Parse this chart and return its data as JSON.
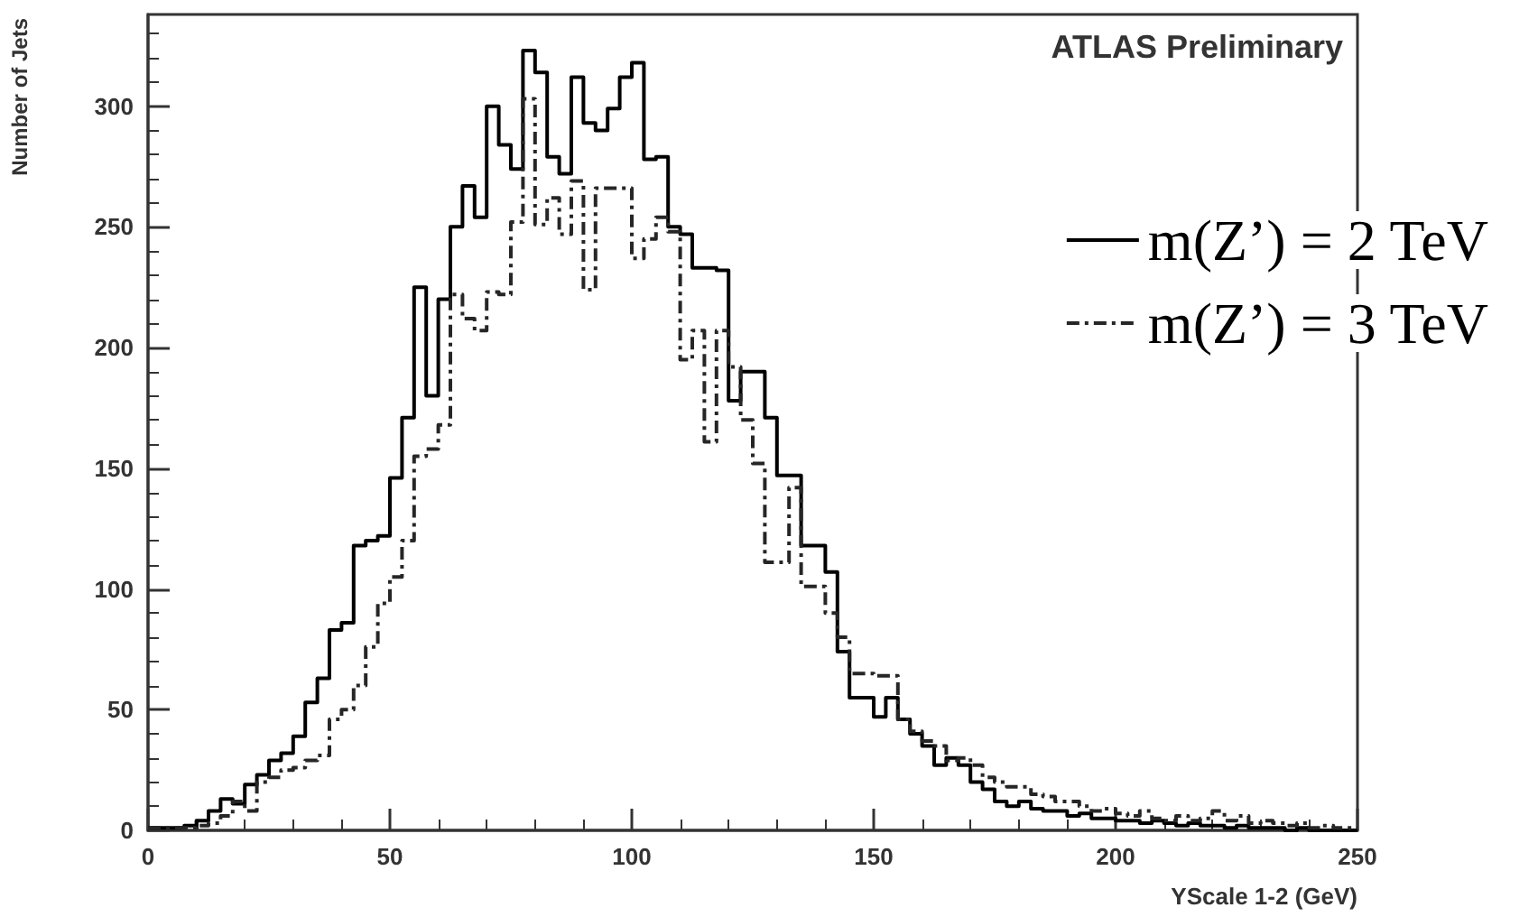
{
  "chart_data": {
    "type": "histogram",
    "xlabel": "YScale 1-2 (GeV)",
    "ylabel": "Number of Jets",
    "annotations": [
      "ATLAS Preliminary"
    ],
    "bins": [
      0,
      2.5,
      5,
      7.5,
      10,
      12.5,
      15,
      17.5,
      20,
      22.5,
      25,
      27.5,
      30,
      32.5,
      35,
      37.5,
      40,
      42.5,
      45,
      47.5,
      50,
      52.5,
      55,
      57.5,
      60,
      62.5,
      65,
      67.5,
      70,
      72.5,
      75,
      77.5,
      80,
      82.5,
      85,
      87.5,
      90,
      92.5,
      95,
      97.5,
      100,
      102.5,
      105,
      107.5,
      110,
      112.5,
      115,
      117.5,
      120,
      122.5,
      125,
      127.5,
      130,
      132.5,
      135,
      137.5,
      140,
      142.5,
      145,
      147.5,
      150,
      152.5,
      155,
      157.5,
      160,
      162.5,
      165,
      167.5,
      170,
      172.5,
      175,
      177.5,
      180,
      182.5,
      185,
      187.5,
      190,
      192.5,
      195,
      197.5,
      200,
      202.5,
      205,
      207.5,
      210,
      212.5,
      215,
      217.5,
      220,
      222.5,
      225,
      227.5,
      230,
      232.5,
      235,
      237.5,
      240,
      242.5,
      245,
      247.5,
      250
    ],
    "series": [
      {
        "name": "m(Z’) = 2 TeV",
        "color": "#000000",
        "line_style": "solid",
        "values": [
          1,
          1,
          1,
          2,
          4,
          8,
          13,
          11,
          19,
          23,
          29,
          32,
          39,
          53,
          63,
          83,
          86,
          118,
          120,
          122,
          146,
          171,
          225,
          180,
          220,
          250,
          267,
          254,
          300,
          284,
          274,
          323,
          314,
          279,
          272,
          312,
          293,
          290,
          299,
          312,
          318,
          278,
          279,
          250,
          247,
          233,
          233,
          232,
          178,
          190,
          190,
          171,
          147,
          147,
          118,
          118,
          107,
          74,
          55,
          55,
          47,
          55,
          46,
          40,
          35,
          27,
          30,
          27,
          20,
          17,
          12,
          10,
          12,
          9,
          8,
          8,
          6,
          7,
          5,
          5,
          4,
          4,
          3,
          4,
          3,
          2,
          3,
          2,
          2,
          1,
          2,
          1,
          1,
          1,
          0,
          1,
          0,
          0,
          0,
          0
        ]
      },
      {
        "name": "m(Z’) = 3 TeV",
        "color": "#262626",
        "line_style": "dashed",
        "values": [
          1,
          1,
          1,
          1,
          2,
          3,
          6,
          12,
          8,
          20,
          22,
          25,
          26,
          29,
          31,
          46,
          50,
          60,
          76,
          94,
          105,
          120,
          155,
          158,
          168,
          222,
          212,
          207,
          223,
          222,
          252,
          303,
          251,
          262,
          247,
          269,
          224,
          266,
          266,
          266,
          237,
          245,
          254,
          248,
          195,
          207,
          161,
          207,
          192,
          170,
          152,
          111,
          111,
          142,
          101,
          101,
          90,
          80,
          65,
          65,
          64,
          64,
          46,
          41,
          37,
          35,
          29,
          30,
          27,
          22,
          20,
          18,
          18,
          15,
          14,
          12,
          12,
          10,
          8,
          9,
          7,
          6,
          8,
          5,
          4,
          6,
          4,
          5,
          8,
          4,
          6,
          3,
          4,
          3,
          2,
          3,
          1,
          2,
          1,
          1
        ]
      }
    ],
    "xlim": [
      0,
      250
    ],
    "xticks": [
      0,
      50,
      100,
      150,
      200,
      250
    ],
    "ylim": [
      0,
      338
    ],
    "yticks": [
      0,
      50,
      100,
      150,
      200,
      250,
      300
    ],
    "grid": false,
    "legend": "top right"
  }
}
